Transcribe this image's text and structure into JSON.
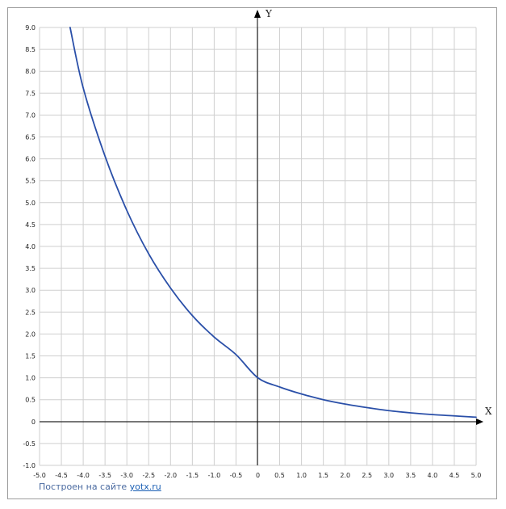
{
  "chart_data": {
    "type": "line",
    "title": "",
    "xlabel": "X",
    "ylabel": "Y",
    "xlim": [
      -5.0,
      5.0
    ],
    "ylim": [
      -1.0,
      9.0
    ],
    "grid": true,
    "x_ticks": [
      "-5.0",
      "-4.5",
      "-4.0",
      "-3.5",
      "-3.0",
      "-2.5",
      "-2.0",
      "-1.5",
      "-1.0",
      "-0.5",
      "0",
      "0.5",
      "1.0",
      "1.5",
      "2.0",
      "2.5",
      "3.0",
      "3.5",
      "4.0",
      "4.5",
      "5.0"
    ],
    "y_ticks": [
      "-1.0",
      "-0.5",
      "0",
      "0.5",
      "1.0",
      "1.5",
      "2.0",
      "2.5",
      "3.0",
      "3.5",
      "4.0",
      "4.5",
      "5.0",
      "5.5",
      "6.0",
      "6.5",
      "7.0",
      "7.5",
      "8.0",
      "8.5",
      "9.0"
    ],
    "series": [
      {
        "color": "#2a4fa8",
        "x": [
          -4.3,
          -4.0,
          -3.5,
          -3.0,
          -2.5,
          -2.0,
          -1.5,
          -1.0,
          -0.5,
          0.0,
          0.5,
          1.0,
          1.5,
          2.0,
          2.5,
          3.0,
          3.5,
          4.0,
          4.5,
          5.0
        ],
        "y": [
          9.0,
          7.62,
          6.06,
          4.82,
          3.83,
          3.05,
          2.42,
          1.93,
          1.53,
          1.0,
          0.79,
          0.63,
          0.5,
          0.4,
          0.32,
          0.25,
          0.2,
          0.16,
          0.13,
          0.1
        ]
      }
    ]
  },
  "credit": {
    "prefix": "Построен на сайте",
    "link": "yotx.ru"
  }
}
